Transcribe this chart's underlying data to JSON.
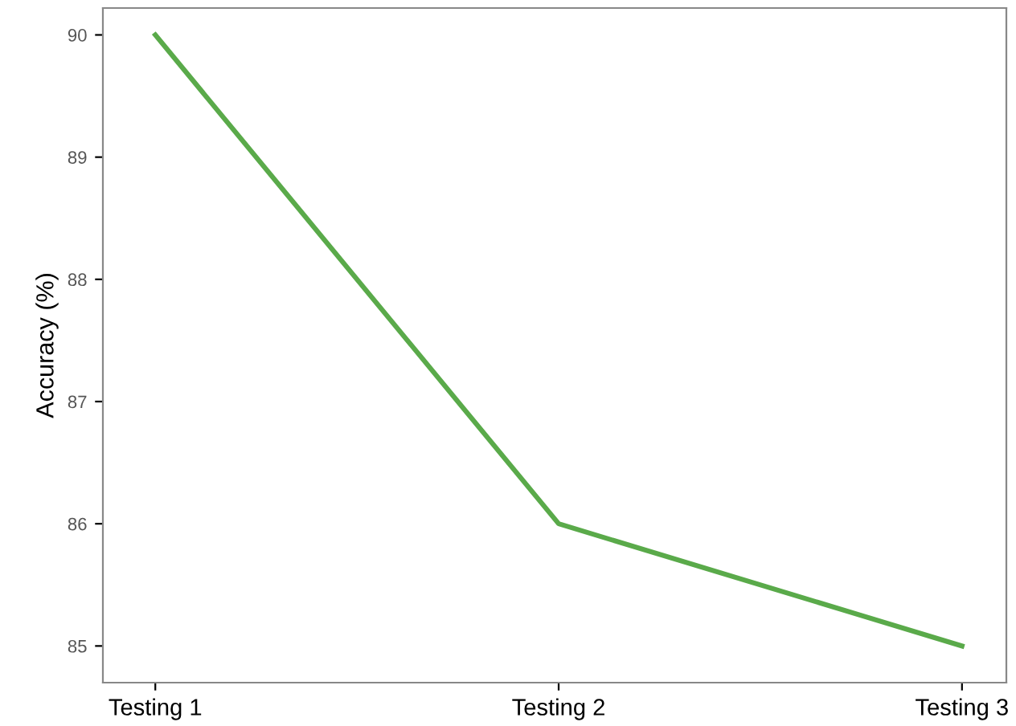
{
  "chart_data": {
    "type": "line",
    "ylabel": "Accuracy (%)",
    "categories": [
      "Testing 1",
      "Testing 2",
      "Testing 3"
    ],
    "series": [
      {
        "color": "#5aaa4a",
        "values": [
          90,
          86,
          85
        ]
      }
    ],
    "ylim": [
      84.7,
      90.22
    ],
    "yticks": [
      85,
      86,
      87,
      88,
      89,
      90
    ],
    "grid": false,
    "marker": "none",
    "line_style": "solid"
  }
}
